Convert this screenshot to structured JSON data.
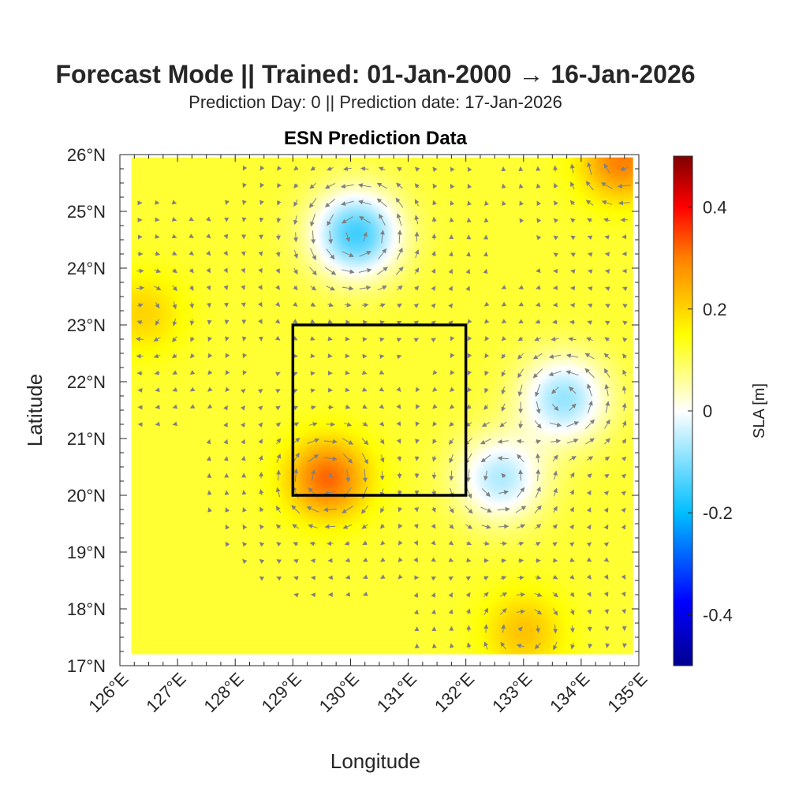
{
  "figure": {
    "suptitle": "Forecast Mode || Trained: 01-Jan-2000 → 16-Jan-2026",
    "subtitle": "Prediction Day: 0 || Prediction date: 17-Jan-2026"
  },
  "chart_data": {
    "type": "heatmap",
    "title": "ESN Prediction Data",
    "xlabel": "Longitude",
    "ylabel": "Latitude",
    "xlim": [
      126,
      135
    ],
    "ylim": [
      17,
      26
    ],
    "x_ticks": [
      "126°E",
      "127°E",
      "128°E",
      "129°E",
      "130°E",
      "131°E",
      "132°E",
      "133°E",
      "134°E",
      "135°E"
    ],
    "y_ticks": [
      "17°N",
      "18°N",
      "19°N",
      "20°N",
      "21°N",
      "22°N",
      "23°N",
      "24°N",
      "25°N",
      "26°N"
    ],
    "colorbar": {
      "label": "SLA [m]",
      "range": [
        -0.5,
        0.5
      ],
      "ticks": [
        "0.4",
        "0.2",
        "0",
        "-0.2",
        "-0.4"
      ],
      "tick_values": [
        0.4,
        0.2,
        0,
        -0.2,
        -0.4
      ],
      "colormap": [
        "#00008f",
        "#0000ff",
        "#00bfff",
        "#ffffff",
        "#ffff00",
        "#ff8000",
        "#ff0000",
        "#800000"
      ]
    },
    "field_extent": {
      "lon": [
        126.2,
        134.9
      ],
      "lat": [
        17.2,
        25.95
      ]
    },
    "features": [
      {
        "kind": "low",
        "lon": 130.1,
        "lat": 24.6,
        "sla": -0.15
      },
      {
        "kind": "low",
        "lon": 133.7,
        "lat": 21.7,
        "sla": -0.08
      },
      {
        "kind": "low",
        "lon": 132.6,
        "lat": 20.3,
        "sla": -0.06
      },
      {
        "kind": "high",
        "lon": 129.6,
        "lat": 20.3,
        "sla": 0.32
      },
      {
        "kind": "high",
        "lon": 134.7,
        "lat": 25.9,
        "sla": 0.3
      },
      {
        "kind": "high",
        "lon": 126.4,
        "lat": 23.2,
        "sla": 0.2
      },
      {
        "kind": "high",
        "lon": 133.0,
        "lat": 17.6,
        "sla": 0.22
      }
    ],
    "region_box": {
      "lon": [
        129,
        132
      ],
      "lat": [
        20,
        23
      ]
    },
    "vectors": "geostrophic velocity arrows",
    "vector_color": "#808080",
    "grid": false
  }
}
